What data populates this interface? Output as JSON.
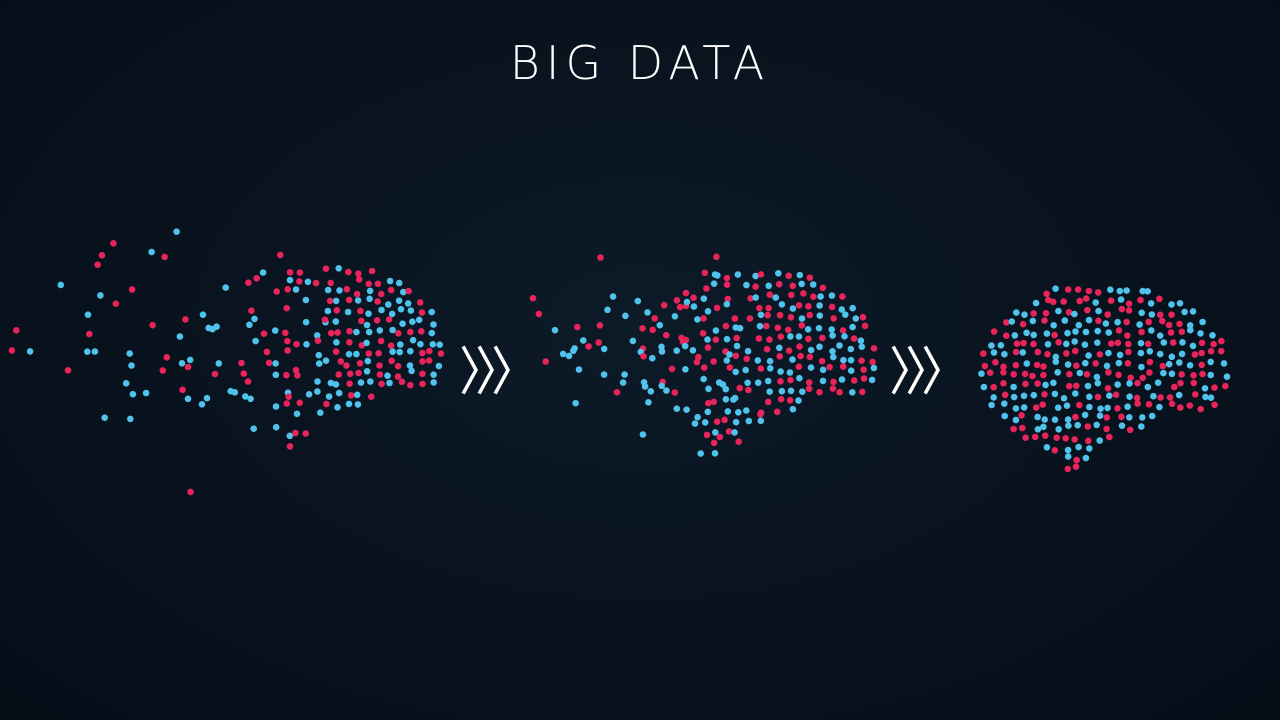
{
  "title": "BIG DATA",
  "colors": {
    "background": "#08121d",
    "dot_cyan": "#4fc3ec",
    "dot_red": "#e8245a",
    "arrow": "#ffffff"
  },
  "stages": [
    {
      "name": "scattered-brain"
    },
    {
      "name": "forming-brain"
    },
    {
      "name": "complete-brain"
    }
  ],
  "arrows": [
    {
      "icon": "triple-chevron-right-icon"
    },
    {
      "icon": "triple-chevron-right-icon"
    }
  ]
}
